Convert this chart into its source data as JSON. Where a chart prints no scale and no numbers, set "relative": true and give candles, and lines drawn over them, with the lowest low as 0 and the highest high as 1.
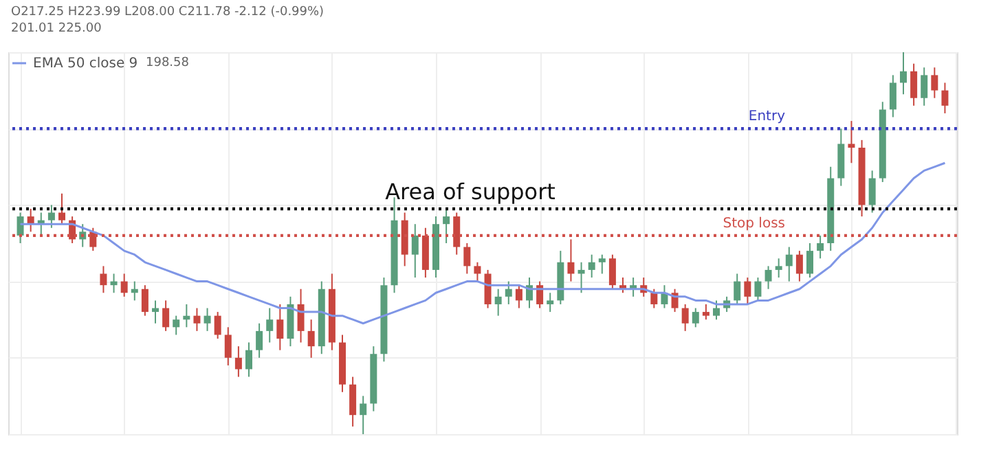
{
  "chart_data": {
    "type": "candlestick",
    "relative": true,
    "categories": [
      null,
      null,
      null,
      null,
      null,
      null,
      null,
      null,
      null,
      null,
      null,
      null,
      null,
      null,
      null,
      null,
      null,
      null,
      null,
      null,
      null,
      null,
      null,
      null,
      null,
      null,
      null,
      null,
      null,
      null,
      null,
      null,
      null,
      null,
      null,
      null,
      null,
      null,
      null,
      null,
      null,
      null,
      null,
      null,
      null,
      null,
      null,
      null,
      null,
      null,
      null,
      null,
      null,
      null,
      null,
      null,
      null,
      null,
      null,
      null,
      null,
      null,
      null,
      null,
      null,
      null,
      null,
      null,
      null,
      null,
      null,
      null,
      null,
      null,
      null,
      null,
      null,
      null,
      null,
      null,
      null,
      null,
      null,
      null,
      null,
      null,
      null,
      null,
      null,
      null
    ],
    "ohlc": [
      [
        0.52,
        0.58,
        0.5,
        0.57
      ],
      [
        0.57,
        0.59,
        0.53,
        0.55
      ],
      [
        0.55,
        0.58,
        0.52,
        0.56
      ],
      [
        0.56,
        0.6,
        0.54,
        0.58
      ],
      [
        0.58,
        0.63,
        0.55,
        0.56
      ],
      [
        0.56,
        0.57,
        0.5,
        0.51
      ],
      [
        0.51,
        0.55,
        0.49,
        0.53
      ],
      [
        0.53,
        0.54,
        0.48,
        0.49
      ],
      [
        0.42,
        0.44,
        0.37,
        0.39
      ],
      [
        0.39,
        0.42,
        0.37,
        0.4
      ],
      [
        0.4,
        0.42,
        0.36,
        0.37
      ],
      [
        0.37,
        0.4,
        0.35,
        0.38
      ],
      [
        0.38,
        0.39,
        0.31,
        0.32
      ],
      [
        0.32,
        0.35,
        0.29,
        0.33
      ],
      [
        0.33,
        0.35,
        0.27,
        0.28
      ],
      [
        0.28,
        0.31,
        0.26,
        0.3
      ],
      [
        0.3,
        0.34,
        0.28,
        0.31
      ],
      [
        0.31,
        0.33,
        0.27,
        0.29
      ],
      [
        0.29,
        0.33,
        0.27,
        0.31
      ],
      [
        0.31,
        0.32,
        0.25,
        0.26
      ],
      [
        0.26,
        0.28,
        0.18,
        0.2
      ],
      [
        0.2,
        0.23,
        0.15,
        0.17
      ],
      [
        0.17,
        0.24,
        0.15,
        0.22
      ],
      [
        0.22,
        0.29,
        0.2,
        0.27
      ],
      [
        0.27,
        0.33,
        0.24,
        0.3
      ],
      [
        0.3,
        0.34,
        0.22,
        0.25
      ],
      [
        0.25,
        0.36,
        0.23,
        0.34
      ],
      [
        0.34,
        0.38,
        0.24,
        0.27
      ],
      [
        0.27,
        0.3,
        0.2,
        0.23
      ],
      [
        0.23,
        0.4,
        0.21,
        0.38
      ],
      [
        0.38,
        0.42,
        0.22,
        0.24
      ],
      [
        0.24,
        0.26,
        0.11,
        0.13
      ],
      [
        0.13,
        0.15,
        0.02,
        0.05
      ],
      [
        0.05,
        0.1,
        0.0,
        0.08
      ],
      [
        0.08,
        0.23,
        0.06,
        0.21
      ],
      [
        0.21,
        0.41,
        0.19,
        0.39
      ],
      [
        0.39,
        0.62,
        0.37,
        0.56
      ],
      [
        0.56,
        0.58,
        0.44,
        0.47
      ],
      [
        0.47,
        0.55,
        0.41,
        0.52
      ],
      [
        0.52,
        0.54,
        0.41,
        0.43
      ],
      [
        0.43,
        0.57,
        0.41,
        0.55
      ],
      [
        0.55,
        0.59,
        0.5,
        0.57
      ],
      [
        0.57,
        0.58,
        0.47,
        0.49
      ],
      [
        0.49,
        0.5,
        0.42,
        0.44
      ],
      [
        0.44,
        0.45,
        0.4,
        0.42
      ],
      [
        0.42,
        0.43,
        0.33,
        0.34
      ],
      [
        0.34,
        0.38,
        0.31,
        0.36
      ],
      [
        0.36,
        0.4,
        0.34,
        0.38
      ],
      [
        0.38,
        0.39,
        0.33,
        0.35
      ],
      [
        0.35,
        0.41,
        0.33,
        0.39
      ],
      [
        0.39,
        0.4,
        0.33,
        0.34
      ],
      [
        0.34,
        0.37,
        0.32,
        0.35
      ],
      [
        0.35,
        0.48,
        0.34,
        0.45
      ],
      [
        0.45,
        0.51,
        0.4,
        0.42
      ],
      [
        0.42,
        0.45,
        0.37,
        0.43
      ],
      [
        0.43,
        0.47,
        0.41,
        0.45
      ],
      [
        0.45,
        0.47,
        0.42,
        0.46
      ],
      [
        0.46,
        0.47,
        0.38,
        0.39
      ],
      [
        0.39,
        0.41,
        0.37,
        0.38
      ],
      [
        0.38,
        0.41,
        0.36,
        0.39
      ],
      [
        0.39,
        0.41,
        0.36,
        0.37
      ],
      [
        0.37,
        0.38,
        0.33,
        0.34
      ],
      [
        0.34,
        0.39,
        0.33,
        0.37
      ],
      [
        0.37,
        0.38,
        0.32,
        0.33
      ],
      [
        0.33,
        0.34,
        0.27,
        0.29
      ],
      [
        0.29,
        0.33,
        0.28,
        0.32
      ],
      [
        0.32,
        0.34,
        0.3,
        0.31
      ],
      [
        0.31,
        0.35,
        0.3,
        0.33
      ],
      [
        0.33,
        0.36,
        0.32,
        0.35
      ],
      [
        0.35,
        0.42,
        0.34,
        0.4
      ],
      [
        0.4,
        0.41,
        0.34,
        0.36
      ],
      [
        0.36,
        0.41,
        0.35,
        0.4
      ],
      [
        0.4,
        0.44,
        0.38,
        0.43
      ],
      [
        0.43,
        0.46,
        0.41,
        0.44
      ],
      [
        0.44,
        0.49,
        0.4,
        0.47
      ],
      [
        0.47,
        0.48,
        0.4,
        0.42
      ],
      [
        0.42,
        0.5,
        0.41,
        0.48
      ],
      [
        0.48,
        0.52,
        0.46,
        0.5
      ],
      [
        0.5,
        0.7,
        0.48,
        0.67
      ],
      [
        0.67,
        0.8,
        0.65,
        0.76
      ],
      [
        0.76,
        0.82,
        0.71,
        0.75
      ],
      [
        0.75,
        0.77,
        0.57,
        0.6
      ],
      [
        0.6,
        0.69,
        0.58,
        0.67
      ],
      [
        0.67,
        0.87,
        0.66,
        0.85
      ],
      [
        0.85,
        0.94,
        0.83,
        0.92
      ],
      [
        0.92,
        1.0,
        0.89,
        0.95
      ],
      [
        0.95,
        0.97,
        0.86,
        0.88
      ],
      [
        0.88,
        0.96,
        0.86,
        0.94
      ],
      [
        0.94,
        0.96,
        0.88,
        0.9
      ],
      [
        0.9,
        0.92,
        0.84,
        0.86
      ]
    ],
    "colors": [
      "#5a9e7c",
      "#c8463f",
      "#5a9e7c",
      "#5a9e7c",
      "#c8463f",
      "#c8463f",
      "#5a9e7c",
      "#c8463f",
      "#c8463f",
      "#5a9e7c",
      "#c8463f",
      "#5a9e7c",
      "#c8463f",
      "#5a9e7c",
      "#c8463f",
      "#5a9e7c",
      "#5a9e7c",
      "#c8463f",
      "#5a9e7c",
      "#c8463f",
      "#c8463f",
      "#c8463f",
      "#5a9e7c",
      "#5a9e7c",
      "#5a9e7c",
      "#c8463f",
      "#5a9e7c",
      "#c8463f",
      "#c8463f",
      "#5a9e7c",
      "#c8463f",
      "#c8463f",
      "#c8463f",
      "#5a9e7c",
      "#5a9e7c",
      "#5a9e7c",
      "#5a9e7c",
      "#c8463f",
      "#5a9e7c",
      "#c8463f",
      "#5a9e7c",
      "#5a9e7c",
      "#c8463f",
      "#c8463f",
      "#c8463f",
      "#c8463f",
      "#5a9e7c",
      "#5a9e7c",
      "#c8463f",
      "#5a9e7c",
      "#c8463f",
      "#5a9e7c",
      "#5a9e7c",
      "#c8463f",
      "#5a9e7c",
      "#5a9e7c",
      "#5a9e7c",
      "#c8463f",
      "#c8463f",
      "#5a9e7c",
      "#c8463f",
      "#c8463f",
      "#5a9e7c",
      "#c8463f",
      "#c8463f",
      "#5a9e7c",
      "#c8463f",
      "#5a9e7c",
      "#5a9e7c",
      "#5a9e7c",
      "#c8463f",
      "#5a9e7c",
      "#5a9e7c",
      "#5a9e7c",
      "#5a9e7c",
      "#c8463f",
      "#5a9e7c",
      "#5a9e7c",
      "#5a9e7c",
      "#5a9e7c",
      "#c8463f",
      "#c8463f",
      "#5a9e7c",
      "#5a9e7c",
      "#5a9e7c",
      "#5a9e7c",
      "#c8463f",
      "#5a9e7c",
      "#c8463f",
      "#c8463f"
    ],
    "series": [
      {
        "name": "EMA 50 close 9",
        "type": "line",
        "color": "#7f96e6",
        "values": [
          0.55,
          0.55,
          0.55,
          0.55,
          0.55,
          0.55,
          0.54,
          0.53,
          0.52,
          0.5,
          0.48,
          0.47,
          0.45,
          0.44,
          0.43,
          0.42,
          0.41,
          0.4,
          0.4,
          0.39,
          0.38,
          0.37,
          0.36,
          0.35,
          0.34,
          0.33,
          0.33,
          0.32,
          0.32,
          0.32,
          0.31,
          0.31,
          0.3,
          0.29,
          0.3,
          0.31,
          0.32,
          0.33,
          0.34,
          0.35,
          0.37,
          0.38,
          0.39,
          0.4,
          0.4,
          0.39,
          0.39,
          0.39,
          0.39,
          0.38,
          0.38,
          0.38,
          0.38,
          0.38,
          0.38,
          0.38,
          0.38,
          0.38,
          0.38,
          0.38,
          0.38,
          0.37,
          0.37,
          0.36,
          0.36,
          0.35,
          0.35,
          0.34,
          0.34,
          0.34,
          0.34,
          0.35,
          0.35,
          0.36,
          0.37,
          0.38,
          0.4,
          0.42,
          0.44,
          0.47,
          0.49,
          0.51,
          0.54,
          0.58,
          0.61,
          0.64,
          0.67,
          0.69,
          0.7,
          0.71
        ]
      }
    ],
    "ref_lines": [
      {
        "axis": "y",
        "value": 0.59,
        "label": "Area of support",
        "color": "#111111",
        "line_style": "dotted"
      },
      {
        "axis": "y",
        "value": 0.8,
        "label": "Entry",
        "color": "#3a3fc0",
        "line_style": "dotted"
      },
      {
        "axis": "y",
        "value": 0.52,
        "label": "Stop loss",
        "color": "#d0504a",
        "line_style": "dotted"
      }
    ],
    "annotations": [
      "O217.25 H223.99 L208.00 C211.78 -2.12 (-0.99%)",
      "201.01  225.00",
      "198.58"
    ],
    "legend": "top left",
    "grid": true
  }
}
